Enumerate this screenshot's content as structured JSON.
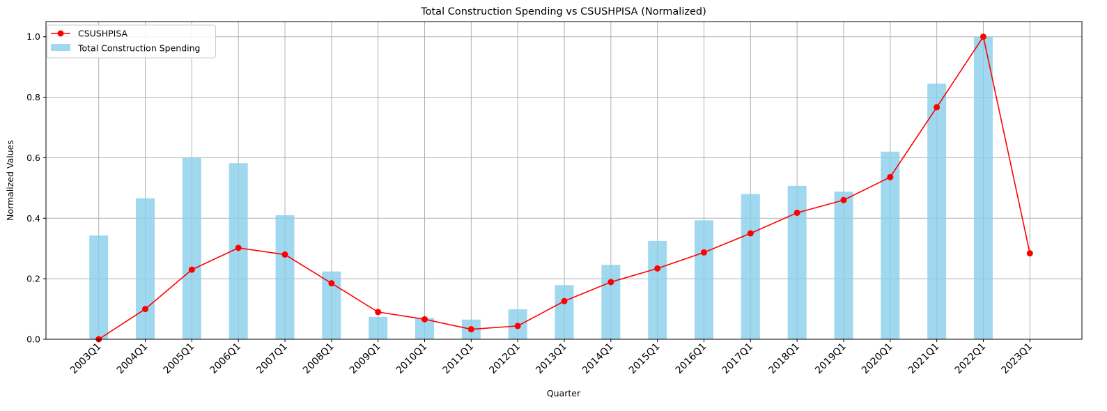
{
  "chart_data": {
    "type": "bar",
    "title": "Total Construction Spending vs CSUSHPISA (Normalized)",
    "xlabel": "Quarter",
    "ylabel": "Normalized Values",
    "ylim": [
      0,
      1.05
    ],
    "yticks": [
      "0.0",
      "0.2",
      "0.4",
      "0.6",
      "0.8",
      "1.0"
    ],
    "grid": true,
    "legend_position": "top-left",
    "categories": [
      "2003Q1",
      "2004Q1",
      "2005Q1",
      "2006Q1",
      "2007Q1",
      "2008Q1",
      "2009Q1",
      "2010Q1",
      "2011Q1",
      "2012Q1",
      "2013Q1",
      "2014Q1",
      "2015Q1",
      "2016Q1",
      "2017Q1",
      "2018Q1",
      "2019Q1",
      "2020Q1",
      "2021Q1",
      "2022Q1",
      "2023Q1"
    ],
    "series": [
      {
        "name": "CSUSHPISA",
        "kind": "line",
        "color": "#ff0000",
        "values": [
          0.0,
          0.1,
          0.23,
          0.302,
          0.28,
          0.185,
          0.09,
          0.066,
          0.033,
          0.044,
          0.126,
          0.189,
          0.234,
          0.287,
          0.35,
          0.418,
          0.46,
          0.536,
          0.767,
          1.0,
          0.284
        ]
      },
      {
        "name": "Total Construction Spending",
        "kind": "bar",
        "color": "#87ceeb",
        "values": [
          0.343,
          0.466,
          0.6,
          0.582,
          0.41,
          0.224,
          0.074,
          0.07,
          0.065,
          0.099,
          0.179,
          0.246,
          0.325,
          0.393,
          0.48,
          0.507,
          0.488,
          0.62,
          0.845,
          1.0,
          null
        ]
      }
    ]
  }
}
